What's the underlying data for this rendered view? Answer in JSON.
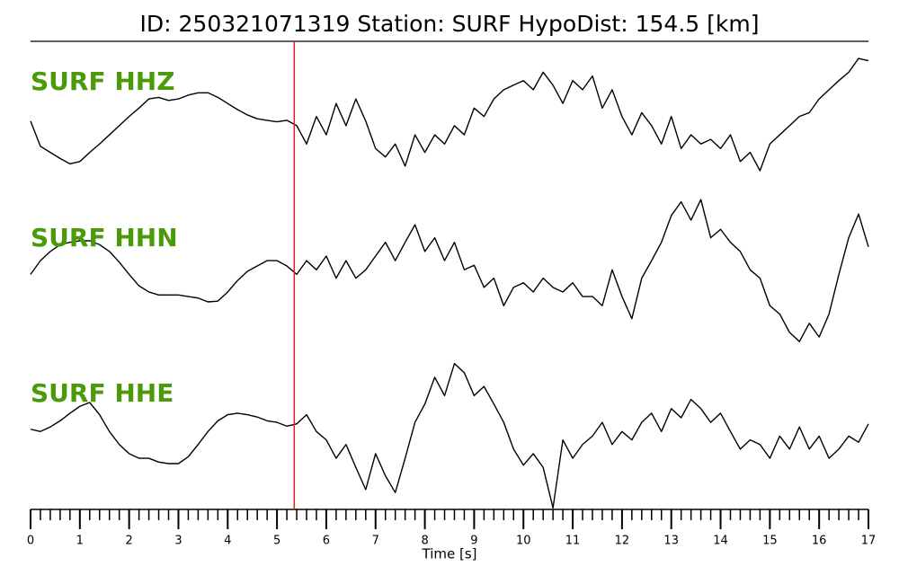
{
  "chart_data": {
    "type": "seismogram",
    "title": "ID: 250321071319   Station: SURF   HypoDist:   154.5 [km]",
    "x_label": "Time [s]",
    "xlim": [
      0,
      17
    ],
    "xticks": [
      0,
      1,
      2,
      3,
      4,
      5,
      6,
      7,
      8,
      9,
      10,
      11,
      12,
      13,
      14,
      15,
      16,
      17
    ],
    "minor_tick_step": 0.2,
    "ylim": [
      -1,
      1
    ],
    "pick_time": 5.35,
    "pick_color": "#e8201a",
    "label_color": "#4a9a0a",
    "x": [
      0,
      0.2,
      0.4,
      0.6,
      0.8,
      1,
      1.2,
      1.4,
      1.6,
      1.8,
      2,
      2.2,
      2.4,
      2.6,
      2.8,
      3,
      3.2,
      3.4,
      3.6,
      3.8,
      4,
      4.2,
      4.4,
      4.6,
      4.8,
      5,
      5.2,
      5.4,
      5.6,
      5.8,
      6,
      6.2,
      6.4,
      6.6,
      6.8,
      7,
      7.2,
      7.4,
      7.6,
      7.8,
      8,
      8.2,
      8.4,
      8.6,
      8.8,
      9,
      9.2,
      9.4,
      9.6,
      9.8,
      10,
      10.2,
      10.4,
      10.6,
      10.8,
      11,
      11.2,
      11.4,
      11.6,
      11.8,
      12,
      12.2,
      12.4,
      12.6,
      12.8,
      13,
      13.2,
      13.4,
      13.6,
      13.8,
      14,
      14.2,
      14.4,
      14.6,
      14.8,
      15,
      15.2,
      15.4,
      15.6,
      15.8,
      16,
      16.2,
      16.4,
      16.6,
      16.8,
      17
    ],
    "series": [
      {
        "name": "SURF HHZ",
        "color": "#000000",
        "values": [
          -0.15,
          -0.48,
          -0.56,
          -0.64,
          -0.71,
          -0.68,
          -0.56,
          -0.45,
          -0.33,
          -0.21,
          -0.09,
          0.02,
          0.14,
          0.16,
          0.12,
          0.14,
          0.19,
          0.22,
          0.22,
          0.16,
          0.08,
          0,
          -0.07,
          -0.12,
          -0.14,
          -0.16,
          -0.14,
          -0.21,
          -0.45,
          -0.09,
          -0.33,
          0.08,
          -0.21,
          0.14,
          -0.15,
          -0.51,
          -0.62,
          -0.45,
          -0.74,
          -0.33,
          -0.56,
          -0.33,
          -0.45,
          -0.21,
          -0.33,
          0.02,
          -0.09,
          0.14,
          0.26,
          0.32,
          0.38,
          0.26,
          0.49,
          0.32,
          0.08,
          0.38,
          0.26,
          0.44,
          0.02,
          0.26,
          -0.09,
          -0.33,
          -0.04,
          -0.21,
          -0.45,
          -0.09,
          -0.51,
          -0.33,
          -0.45,
          -0.39,
          -0.51,
          -0.33,
          -0.68,
          -0.56,
          -0.8,
          -0.45,
          -0.33,
          -0.21,
          -0.09,
          -0.04,
          0.14,
          0.26,
          0.38,
          0.49,
          0.67,
          0.64
        ]
      },
      {
        "name": "SURF HHN",
        "color": "#000000",
        "values": [
          -0.04,
          0.14,
          0.26,
          0.35,
          0.38,
          0.4,
          0.4,
          0.35,
          0.26,
          0.12,
          -0.04,
          -0.19,
          -0.27,
          -0.31,
          -0.31,
          -0.31,
          -0.33,
          -0.35,
          -0.4,
          -0.39,
          -0.27,
          -0.12,
          0,
          0.07,
          0.14,
          0.14,
          0.07,
          -0.04,
          0.14,
          0.02,
          0.2,
          -0.09,
          0.14,
          -0.09,
          0.02,
          0.2,
          0.38,
          0.14,
          0.38,
          0.61,
          0.26,
          0.44,
          0.14,
          0.38,
          0.02,
          0.08,
          -0.21,
          -0.09,
          -0.45,
          -0.21,
          -0.15,
          -0.27,
          -0.09,
          -0.21,
          -0.27,
          -0.15,
          -0.33,
          -0.33,
          -0.45,
          0.02,
          -0.33,
          -0.62,
          -0.09,
          0.14,
          0.38,
          0.73,
          0.91,
          0.67,
          0.94,
          0.44,
          0.55,
          0.38,
          0.26,
          0.02,
          -0.09,
          -0.45,
          -0.56,
          -0.8,
          -0.92,
          -0.68,
          -0.86,
          -0.56,
          -0.04,
          0.44,
          0.75,
          0.32
        ]
      },
      {
        "name": "SURF HHE",
        "color": "#000000",
        "values": [
          0.05,
          0.02,
          0.08,
          0.16,
          0.26,
          0.35,
          0.4,
          0.24,
          0.02,
          -0.15,
          -0.27,
          -0.33,
          -0.33,
          -0.38,
          -0.4,
          -0.4,
          -0.31,
          -0.15,
          0.02,
          0.16,
          0.24,
          0.26,
          0.24,
          0.21,
          0.16,
          0.14,
          0.09,
          0.12,
          0.24,
          0.02,
          -0.09,
          -0.33,
          -0.15,
          -0.45,
          -0.74,
          -0.27,
          -0.56,
          -0.78,
          -0.33,
          0.14,
          0.38,
          0.73,
          0.49,
          0.91,
          0.79,
          0.49,
          0.61,
          0.38,
          0.14,
          -0.21,
          -0.42,
          -0.27,
          -0.45,
          -0.98,
          -0.09,
          -0.33,
          -0.15,
          -0.04,
          0.14,
          -0.15,
          0.02,
          -0.09,
          0.14,
          0.26,
          0.02,
          0.32,
          0.2,
          0.44,
          0.32,
          0.14,
          0.26,
          0.02,
          -0.21,
          -0.09,
          -0.15,
          -0.33,
          -0.04,
          -0.21,
          0.08,
          -0.21,
          -0.04,
          -0.33,
          -0.21,
          -0.04,
          -0.12,
          0.12
        ]
      }
    ]
  }
}
